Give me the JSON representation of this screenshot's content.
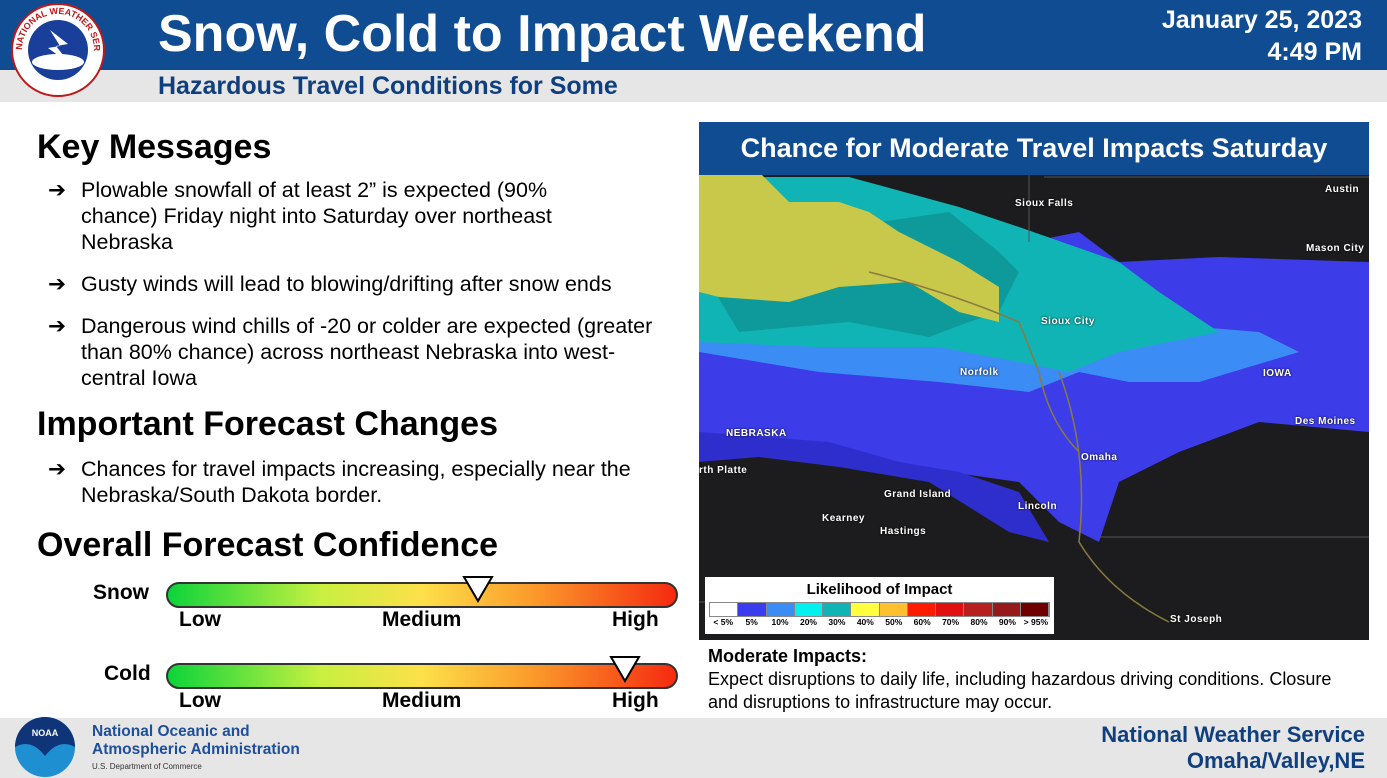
{
  "header": {
    "title": "Snow, Cold to Impact Weekend",
    "subtitle": "Hazardous Travel Conditions for Some",
    "date": "January 25, 2023",
    "time": "4:49 PM",
    "logo_text": "NATIONAL WEATHER SERVICE"
  },
  "key_messages": {
    "heading": "Key Messages",
    "items": [
      "Plowable snowfall of at least 2” is expected (90% chance) Friday night into Saturday over northeast Nebraska",
      "Gusty winds will lead to blowing/drifting after snow ends",
      "Dangerous wind chills of -20 or colder are expected (greater than 80% chance) across northeast Nebraska into west-central Iowa"
    ]
  },
  "changes": {
    "heading": "Important Forecast Changes",
    "items": [
      "Chances for travel impacts increasing, especially near the Nebraska/South Dakota border."
    ]
  },
  "confidence": {
    "heading": "Overall Forecast Confidence",
    "scale": [
      "Low",
      "Medium",
      "High"
    ],
    "rows": [
      {
        "label": "Snow",
        "level": 0.61
      },
      {
        "label": "Cold",
        "level": 0.9
      }
    ],
    "arrow": "➔"
  },
  "map": {
    "title": "Chance for Moderate Travel Impacts Saturday",
    "places": [
      "Sioux Falls",
      "Austin",
      "Mason City",
      "Sioux City",
      "Norfolk",
      "IOWA",
      "NEBRASKA",
      "Des Moines",
      "rth Platte",
      "Omaha",
      "Grand Island",
      "Lincoln",
      "Kearney",
      "Hastings",
      "St Joseph"
    ],
    "legend": {
      "title": "Likelihood of Impact",
      "labels": [
        "< 5%",
        "5%",
        "10%",
        "20%",
        "30%",
        "40%",
        "50%",
        "60%",
        "70%",
        "80%",
        "90%",
        "> 95%"
      ],
      "colors": [
        "#ffffff",
        "#3a3cf0",
        "#3c8cf5",
        "#00f0f0",
        "#10b4b4",
        "#ffff40",
        "#ffc030",
        "#ff1a00",
        "#e01010",
        "#b82020",
        "#961a1a",
        "#700000"
      ]
    }
  },
  "impacts": {
    "heading": "Moderate Impacts:",
    "text": "Expect disruptions to daily life, including hazardous driving conditions. Closure and disruptions to infrastructure may occur."
  },
  "footer": {
    "noaa_line1": "National Oceanic and",
    "noaa_line2": "Atmospheric Administration",
    "dept": "U.S. Department of Commerce",
    "noaa_logo": "NOAA",
    "nws_line1": "National Weather Service",
    "nws_line2": "Omaha/Valley,NE"
  }
}
